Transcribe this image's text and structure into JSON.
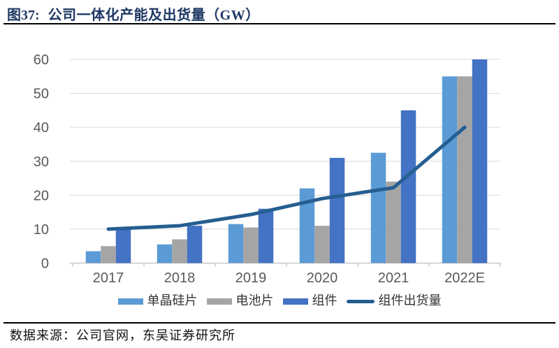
{
  "header": {
    "figure_label": "图37:",
    "title": "公司一体化产能及出货量（GW）"
  },
  "chart_data": {
    "type": "bar",
    "title": "公司一体化产能及出货量（GW）",
    "unit": "GW",
    "categories": [
      "2017",
      "2018",
      "2019",
      "2020",
      "2021",
      "2022E"
    ],
    "series": [
      {
        "name": "单晶硅片",
        "key": "mono-wafer",
        "kind": "bar",
        "color": "#5B9BD5",
        "values": [
          3.5,
          5.5,
          11.5,
          22,
          32.5,
          55
        ]
      },
      {
        "name": "电池片",
        "key": "cell",
        "kind": "bar",
        "color": "#A5A5A5",
        "values": [
          5,
          7,
          10.5,
          11,
          24,
          55
        ]
      },
      {
        "name": "组件",
        "key": "module",
        "kind": "bar",
        "color": "#4472C4",
        "values": [
          10.5,
          11,
          16,
          31,
          45,
          60
        ]
      },
      {
        "name": "组件出货量",
        "key": "module-shipments",
        "kind": "line",
        "color": "#255E91",
        "values": [
          10,
          11,
          14.3,
          19,
          22.2,
          40
        ]
      }
    ],
    "ylim": [
      0,
      60
    ],
    "yticks": [
      0,
      10,
      20,
      30,
      40,
      50,
      60
    ],
    "grid": "horizontal",
    "legend_position": "bottom",
    "axis_label_color": "#595959",
    "gridline_color": "#D9D9D9",
    "axisline_color": "#BFBFBF"
  },
  "footer": {
    "source": "数据来源：公司官网，东吴证券研究所"
  }
}
